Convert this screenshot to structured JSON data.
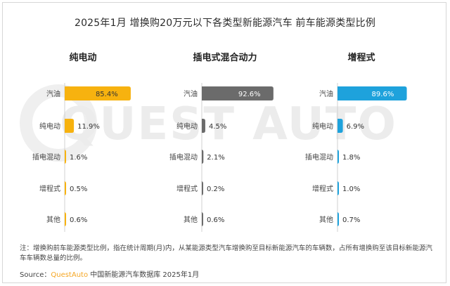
{
  "title": "2025年1月  增换购20万元以下各类型新能源汽车 前车能源类型比例",
  "watermark": "QUEST AUTO",
  "note": "注：增换购前车能源类型比例，指在统计周期(月)内，从某能源类型汽车增换购至目标新能源汽车的车辆数，占所有增换购至该目标新能源汽车车辆数总量的比例。",
  "source": {
    "prefix": "Source：",
    "brand": "QuestAuto",
    "suffix": " 中国新能源汽车数据库 2025年1月"
  },
  "colors": {
    "panel1": "#f7b20f",
    "panel2": "#6b6b6b",
    "panel3": "#1ea2dc"
  },
  "chart_data": [
    {
      "type": "bar",
      "orientation": "horizontal",
      "title": "纯电动",
      "categories": [
        "汽油",
        "纯电动",
        "插电混动",
        "增程式",
        "其他"
      ],
      "values": [
        85.4,
        11.9,
        1.6,
        0.5,
        0.6
      ],
      "unit": "%",
      "xlim": [
        0,
        100
      ],
      "grid": false
    },
    {
      "type": "bar",
      "orientation": "horizontal",
      "title": "插电式混合动力",
      "categories": [
        "汽油",
        "纯电动",
        "插电混动",
        "增程式",
        "其他"
      ],
      "values": [
        92.6,
        4.5,
        2.1,
        0.2,
        0.6
      ],
      "unit": "%",
      "xlim": [
        0,
        100
      ],
      "grid": false
    },
    {
      "type": "bar",
      "orientation": "horizontal",
      "title": "增程式",
      "categories": [
        "汽油",
        "纯电动",
        "插电混动",
        "增程式",
        "其他"
      ],
      "values": [
        89.6,
        6.9,
        1.8,
        1.0,
        0.7
      ],
      "unit": "%",
      "xlim": [
        0,
        100
      ],
      "grid": false
    }
  ]
}
